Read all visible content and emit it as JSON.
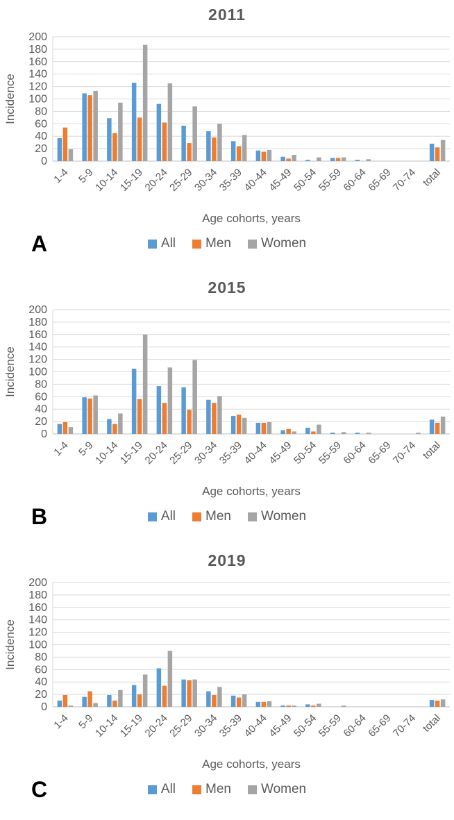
{
  "figure": {
    "x_axis_label": "Age cohorts, years",
    "y_axis_label": "Incidence",
    "colors": {
      "all": "#5B9BD5",
      "men": "#ED7D31",
      "women": "#A5A5A5",
      "text": "#595959",
      "gridline": "#D9D9D9",
      "axis_line": "#BFBFBF"
    }
  },
  "chart_data": [
    {
      "type": "bar",
      "title": "2011",
      "panel_label": "A",
      "xlabel": "Age cohorts, years",
      "ylabel": "Incidence",
      "ylim": [
        0,
        200
      ],
      "ytick_step": 20,
      "grid": true,
      "legend_position": "bottom",
      "categories": [
        "1-4",
        "5-9",
        "10-14",
        "15-19",
        "20-24",
        "25-29",
        "30-34",
        "35-39",
        "40-44",
        "45-49",
        "50-54",
        "55-59",
        "60-64",
        "65-69",
        "70-74",
        "total"
      ],
      "series": [
        {
          "name": "All",
          "color": "#5B9BD5",
          "values": [
            37,
            109,
            69,
            126,
            92,
            57,
            48,
            32,
            17,
            7,
            2,
            5,
            2,
            0,
            0,
            28
          ]
        },
        {
          "name": "Men",
          "color": "#ED7D31",
          "values": [
            54,
            106,
            45,
            70,
            62,
            29,
            38,
            24,
            15,
            4,
            0,
            5,
            0,
            0,
            0,
            22
          ]
        },
        {
          "name": "Women",
          "color": "#A5A5A5",
          "values": [
            19,
            113,
            94,
            187,
            125,
            88,
            60,
            42,
            18,
            10,
            6,
            6,
            3,
            0,
            0,
            34
          ]
        }
      ]
    },
    {
      "type": "bar",
      "title": "2015",
      "panel_label": "B",
      "xlabel": "Age cohorts, years",
      "ylabel": "Incidence",
      "ylim": [
        0,
        200
      ],
      "ytick_step": 20,
      "grid": true,
      "legend_position": "bottom",
      "categories": [
        "1-4",
        "5-9",
        "10-14",
        "15-19",
        "20-24",
        "25-29",
        "30-34",
        "35-39",
        "40-44",
        "45-49",
        "50-54",
        "55-59",
        "60-64",
        "65-69",
        "70-74",
        "total"
      ],
      "series": [
        {
          "name": "All",
          "color": "#5B9BD5",
          "values": [
            16,
            59,
            24,
            105,
            77,
            75,
            55,
            29,
            18,
            6,
            10,
            2,
            2,
            0,
            0,
            23
          ]
        },
        {
          "name": "Men",
          "color": "#ED7D31",
          "values": [
            19,
            57,
            16,
            56,
            50,
            39,
            50,
            31,
            18,
            8,
            4,
            0,
            0,
            0,
            0,
            18
          ]
        },
        {
          "name": "Women",
          "color": "#A5A5A5",
          "values": [
            11,
            62,
            33,
            160,
            107,
            119,
            61,
            26,
            19,
            4,
            15,
            3,
            2,
            0,
            2,
            28
          ]
        }
      ]
    },
    {
      "type": "bar",
      "title": "2019",
      "panel_label": "C",
      "xlabel": "Age cohorts, years",
      "ylabel": "Incidence",
      "ylim": [
        0,
        200
      ],
      "ytick_step": 20,
      "grid": true,
      "legend_position": "bottom",
      "categories": [
        "1-4",
        "5-9",
        "10-14",
        "15-19",
        "20-24",
        "25-29",
        "30-34",
        "35-39",
        "40-44",
        "45-49",
        "50-54",
        "55-59",
        "60-64",
        "65-69",
        "70-74",
        "total"
      ],
      "series": [
        {
          "name": "All",
          "color": "#5B9BD5",
          "values": [
            10,
            16,
            19,
            35,
            62,
            44,
            25,
            18,
            8,
            2,
            4,
            0,
            0,
            0,
            0,
            11
          ]
        },
        {
          "name": "Men",
          "color": "#ED7D31",
          "values": [
            19,
            25,
            10,
            20,
            34,
            43,
            19,
            15,
            8,
            2,
            2,
            0,
            0,
            0,
            0,
            10
          ]
        },
        {
          "name": "Women",
          "color": "#A5A5A5",
          "values": [
            2,
            6,
            27,
            52,
            90,
            44,
            32,
            20,
            9,
            2,
            5,
            2,
            0,
            0,
            0,
            12
          ]
        }
      ]
    }
  ]
}
